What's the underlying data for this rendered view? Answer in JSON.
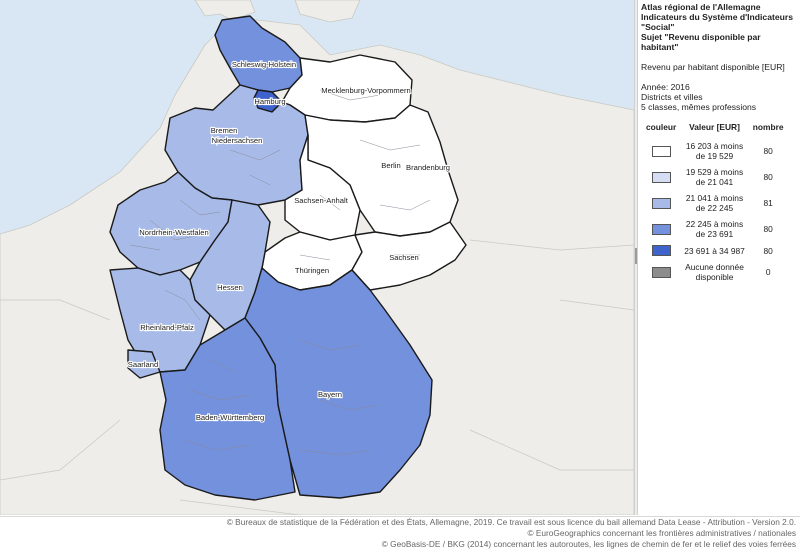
{
  "legend": {
    "title_lines": [
      "Atlas régional de l'Allemagne",
      "Indicateurs du Système d'Indicateurs",
      "\"Social\"",
      "Sujet \"Revenu disponible par habitant\""
    ],
    "indicator": "Revenu par habitant disponible [EUR]",
    "year": "Année: 2016",
    "level": "Districts et villes",
    "method": "5 classes, mêmes professions",
    "columns": {
      "color": "couleur",
      "value": "Valeur [EUR]",
      "count": "nombre"
    },
    "classes": [
      {
        "range_a": "16 203 à moins",
        "range_b": "de 19 529",
        "count": "80",
        "color": "#ffffff"
      },
      {
        "range_a": "19 529 à moins",
        "range_b": "de 21 041",
        "count": "80",
        "color": "#d4ddf3"
      },
      {
        "range_a": "21 041 à moins",
        "range_b": "de 22 245",
        "count": "81",
        "color": "#a8bbe8"
      },
      {
        "range_a": "22 245 à moins",
        "range_b": "de 23 691",
        "count": "80",
        "color": "#7391dc"
      },
      {
        "range_a": "23 691 à 34 987",
        "range_b": "",
        "count": "80",
        "color": "#3e63cd"
      },
      {
        "range_a": "Aucune donnée",
        "range_b": "disponible",
        "count": "0",
        "color": "#8c8c8c"
      }
    ]
  },
  "states": [
    {
      "name": "Schleswig-Holstein",
      "color": "#7391dc"
    },
    {
      "name": "Hamburg",
      "color": "#3e63cd"
    },
    {
      "name": "Mecklenburg-Vorpommern",
      "color": "#ffffff"
    },
    {
      "name": "Bremen",
      "color": "#7391dc"
    },
    {
      "name": "Niedersachsen",
      "color": "#a8bbe8"
    },
    {
      "name": "Berlin",
      "color": "#d4ddf3"
    },
    {
      "name": "Brandenburg",
      "color": "#ffffff"
    },
    {
      "name": "Sachsen-Anhalt",
      "color": "#ffffff"
    },
    {
      "name": "Nordrhein-Westfalen",
      "color": "#a8bbe8"
    },
    {
      "name": "Thüringen",
      "color": "#ffffff"
    },
    {
      "name": "Sachsen",
      "color": "#ffffff"
    },
    {
      "name": "Hessen",
      "color": "#a8bbe8"
    },
    {
      "name": "Rheinland-Pfalz",
      "color": "#a8bbe8"
    },
    {
      "name": "Saarland",
      "color": "#a8bbe8"
    },
    {
      "name": "Bayern",
      "color": "#7391dc"
    },
    {
      "name": "Baden-Württemberg",
      "color": "#7391dc"
    }
  ],
  "colors": {
    "sea": "#d9e7f4",
    "land": "#eeede9",
    "border": "#1a1a1a"
  },
  "footer": {
    "line1": "© Bureaux de statistique de la Fédération et des États, Allemagne, 2019. Ce travail est sous licence du bail allemand Data Lease - Attribution - Version 2.0.",
    "line2": "© EuroGeographics concernant les frontières administratives / nationales",
    "line3": "© GeoBasis-DE / BKG (2014) concernant les autoroutes, les lignes de chemin de fer et le relief des voies ferrées"
  }
}
